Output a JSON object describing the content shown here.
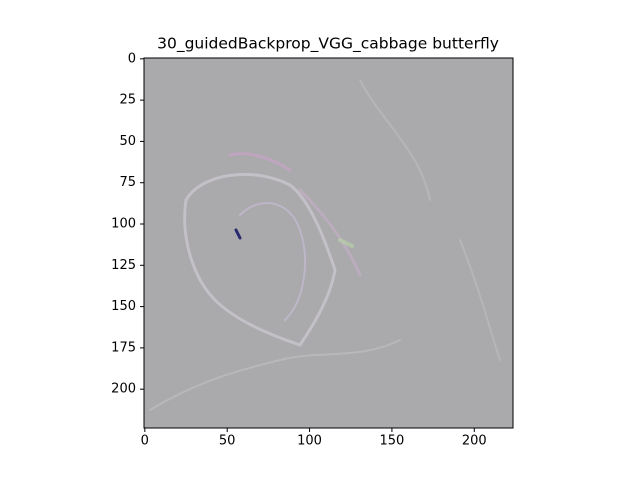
{
  "chart_data": {
    "type": "image",
    "title": "30_guidedBackprop_VGG_cabbage butterfly",
    "xlim": [
      -0.5,
      223.5
    ],
    "ylim": [
      223.5,
      -0.5
    ],
    "xticks": [
      0,
      50,
      100,
      150,
      200
    ],
    "yticks": [
      0,
      25,
      50,
      75,
      100,
      125,
      150,
      175,
      200
    ]
  }
}
